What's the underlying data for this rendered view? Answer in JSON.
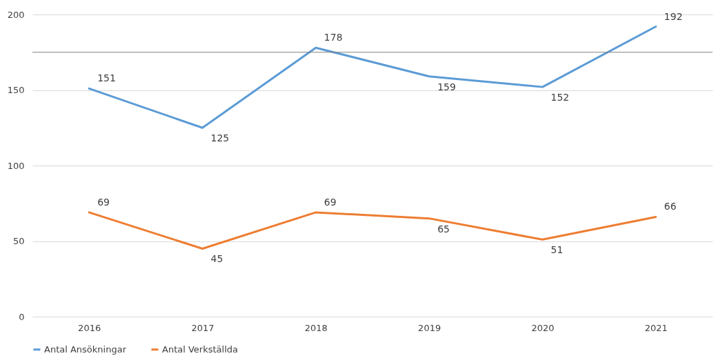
{
  "chart_data": {
    "type": "line",
    "categories": [
      "2016",
      "2017",
      "2018",
      "2019",
      "2020",
      "2021"
    ],
    "series": [
      {
        "name": "Antal Ansökningar",
        "color": "#5b9bd5",
        "values": [
          151,
          125,
          178,
          159,
          152,
          192
        ]
      },
      {
        "name": "Antal Verkställda",
        "color": "#ed7d31",
        "values": [
          69,
          45,
          69,
          65,
          51,
          66
        ]
      }
    ],
    "ylim": [
      0,
      200
    ],
    "yticks": [
      0,
      50,
      100,
      150,
      200
    ],
    "grid": "y",
    "legend": "bottom",
    "data_labels": true,
    "marker": "none",
    "line_style": "solid",
    "ref_lines": [
      {
        "axis": "y",
        "value": 175,
        "color": "#808080"
      }
    ]
  }
}
